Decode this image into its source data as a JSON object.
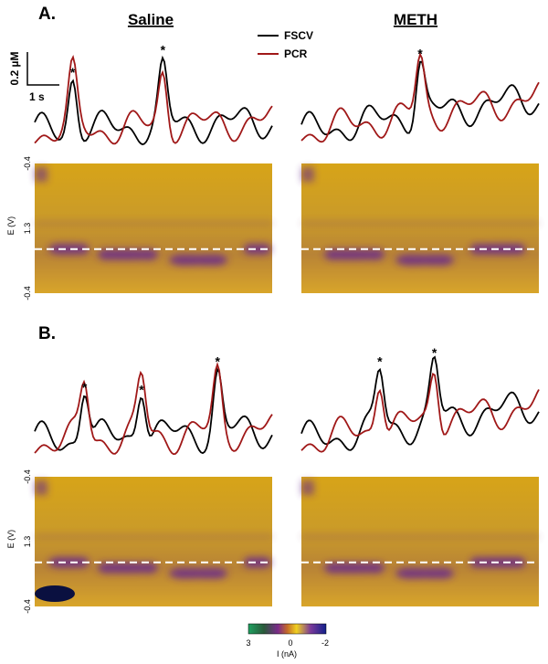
{
  "panel_a": {
    "label": "A.",
    "saline": {
      "title": "Saline",
      "peaks": [
        "*",
        "*"
      ]
    },
    "meth": {
      "title": "METH",
      "peaks": [
        "*"
      ]
    },
    "legend": {
      "fscv": "FSCV",
      "pcr": "PCR"
    },
    "scale": {
      "concentration": "0.2 µM",
      "time": "1 s"
    },
    "y_axis": {
      "title": "E (V)",
      "ticks": [
        "-0.4",
        "1.3",
        "-0.4"
      ]
    }
  },
  "panel_b": {
    "label": "B.",
    "saline": {
      "peaks": [
        "*",
        "*",
        "*"
      ]
    },
    "meth": {
      "peaks": [
        "*",
        "*"
      ]
    },
    "y_axis": {
      "title": "E (V)",
      "ticks": [
        "-0.4",
        "1.3",
        "-0.4"
      ]
    }
  },
  "colorbar": {
    "ticks": [
      "3",
      "0",
      "-2"
    ],
    "title": "I (nA)"
  }
}
